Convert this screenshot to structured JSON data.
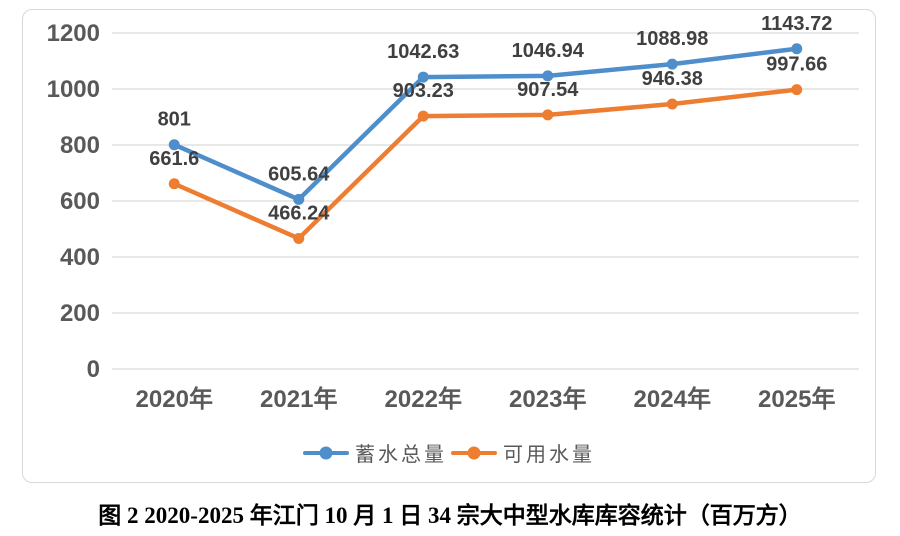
{
  "caption": "图 2 2020-2025 年江门 10 月 1 日 34 宗大中型水库库容统计（百万方）",
  "chart_data": {
    "type": "line",
    "title": "",
    "xlabel": "",
    "ylabel": "",
    "categories": [
      "2020年",
      "2021年",
      "2022年",
      "2023年",
      "2024年",
      "2025年"
    ],
    "series": [
      {
        "name": "蓄水总量",
        "color": "#4e8ecb",
        "values": [
          801,
          605.64,
          1042.63,
          1046.94,
          1088.98,
          1143.72
        ]
      },
      {
        "name": "可用水量",
        "color": "#ed7d31",
        "values": [
          661.6,
          466.24,
          903.23,
          907.54,
          946.38,
          997.66
        ]
      }
    ],
    "ylim": [
      0,
      1200
    ],
    "ytick_interval": 200,
    "grid": true,
    "legend_position": "bottom",
    "data_labels": true,
    "colors": {
      "gridline": "#d9d9d9",
      "frame_border": "#d8d8d8",
      "axis_label": "#595959",
      "data_label": "#404040",
      "legend_label": "#595959"
    }
  }
}
